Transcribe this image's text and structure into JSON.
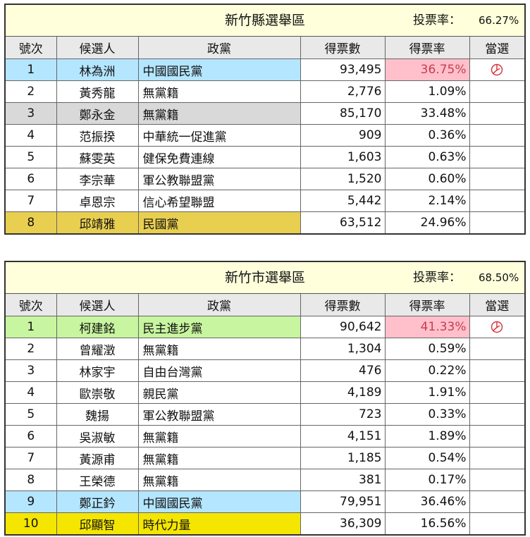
{
  "headers": {
    "no": "號次",
    "candidate": "候選人",
    "party": "政黨",
    "votes": "得票數",
    "rate": "得票率",
    "elected": "當選"
  },
  "turnout_label": "投票率：",
  "colors": {
    "header_bg": "#e9e9e9",
    "title_bg": "#ffffdc",
    "kmt_blue": "#b4e6ff",
    "dpp_green": "#c8f5a0",
    "independent_gray": "#d9d9d9",
    "mkt_gold": "#e9cf50",
    "npp_yellow": "#f4e600",
    "winner_rate_bg": "#ffc0cb",
    "winner_rate_text": "#c83c50",
    "elected_mark": "#d8333f"
  },
  "districts": [
    {
      "name": "新竹縣選舉區",
      "turnout": "66.27%",
      "rows": [
        {
          "no": "1",
          "name": "林為洲",
          "party": "中國國民黨",
          "votes": "93,495",
          "rate": "36.75%",
          "elected": true,
          "row_color": "#b4e6ff"
        },
        {
          "no": "2",
          "name": "黃秀龍",
          "party": "無黨籍",
          "votes": "2,776",
          "rate": "1.09%",
          "elected": false,
          "row_color": ""
        },
        {
          "no": "3",
          "name": "鄭永金",
          "party": "無黨籍",
          "votes": "85,170",
          "rate": "33.48%",
          "elected": false,
          "row_color": "#d9d9d9"
        },
        {
          "no": "4",
          "name": "范振揆",
          "party": "中華統一促進黨",
          "votes": "909",
          "rate": "0.36%",
          "elected": false,
          "row_color": ""
        },
        {
          "no": "5",
          "name": "蘇雯英",
          "party": "健保免費連線",
          "votes": "1,603",
          "rate": "0.63%",
          "elected": false,
          "row_color": ""
        },
        {
          "no": "6",
          "name": "李宗華",
          "party": "軍公教聯盟黨",
          "votes": "1,520",
          "rate": "0.60%",
          "elected": false,
          "row_color": ""
        },
        {
          "no": "7",
          "name": "卓恩宗",
          "party": "信心希望聯盟",
          "votes": "5,442",
          "rate": "2.14%",
          "elected": false,
          "row_color": ""
        },
        {
          "no": "8",
          "name": "邱靖雅",
          "party": "民國黨",
          "votes": "63,512",
          "rate": "24.96%",
          "elected": false,
          "row_color": "#e9cf50"
        }
      ]
    },
    {
      "name": "新竹市選舉區",
      "turnout": "68.50%",
      "rows": [
        {
          "no": "1",
          "name": "柯建銘",
          "party": "民主進步黨",
          "votes": "90,642",
          "rate": "41.33%",
          "elected": true,
          "row_color": "#c8f5a0"
        },
        {
          "no": "2",
          "name": "曾耀澂",
          "party": "無黨籍",
          "votes": "1,304",
          "rate": "0.59%",
          "elected": false,
          "row_color": ""
        },
        {
          "no": "3",
          "name": "林家宇",
          "party": "自由台灣黨",
          "votes": "476",
          "rate": "0.22%",
          "elected": false,
          "row_color": ""
        },
        {
          "no": "4",
          "name": "歐崇敬",
          "party": "親民黨",
          "votes": "4,189",
          "rate": "1.91%",
          "elected": false,
          "row_color": ""
        },
        {
          "no": "5",
          "name": "魏揚",
          "party": "軍公教聯盟黨",
          "votes": "723",
          "rate": "0.33%",
          "elected": false,
          "row_color": ""
        },
        {
          "no": "6",
          "name": "吳淑敏",
          "party": "無黨籍",
          "votes": "4,151",
          "rate": "1.89%",
          "elected": false,
          "row_color": ""
        },
        {
          "no": "7",
          "name": "黃源甫",
          "party": "無黨籍",
          "votes": "1,185",
          "rate": "0.54%",
          "elected": false,
          "row_color": ""
        },
        {
          "no": "8",
          "name": "王榮德",
          "party": "無黨籍",
          "votes": "381",
          "rate": "0.17%",
          "elected": false,
          "row_color": ""
        },
        {
          "no": "9",
          "name": "鄭正鈐",
          "party": "中國國民黨",
          "votes": "79,951",
          "rate": "36.46%",
          "elected": false,
          "row_color": "#b4e6ff"
        },
        {
          "no": "10",
          "name": "邱顯智",
          "party": "時代力量",
          "votes": "36,309",
          "rate": "16.56%",
          "elected": false,
          "row_color": "#f4e600"
        }
      ]
    }
  ]
}
